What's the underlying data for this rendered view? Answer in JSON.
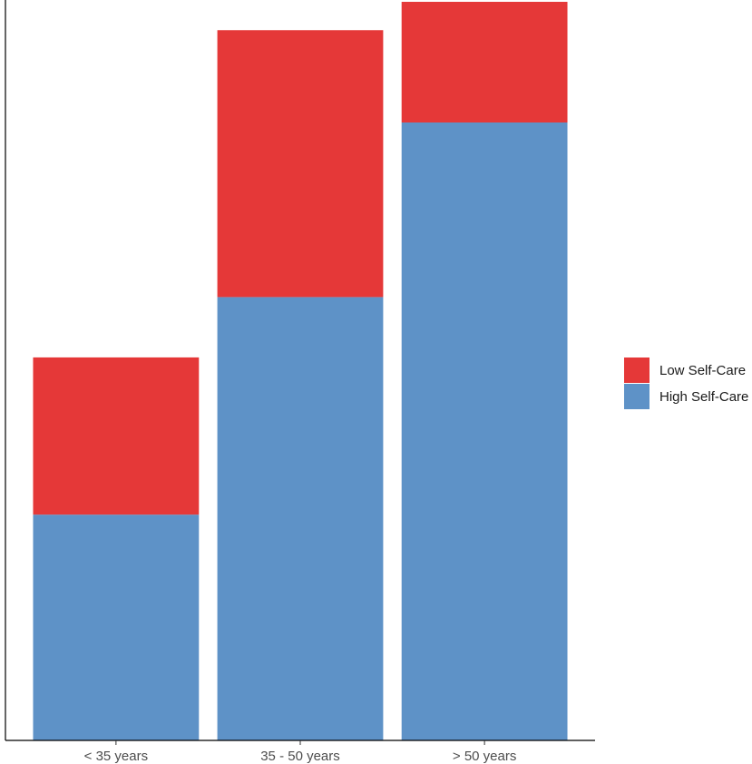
{
  "chart_data": {
    "type": "bar",
    "stacked": true,
    "categories": [
      "< 35 years",
      "35 - 50 years",
      "> 50 years"
    ],
    "series": [
      {
        "name": "High Self-Care",
        "color": "#5E92C7",
        "values": [
          247,
          485,
          676
        ]
      },
      {
        "name": "Low Self-Care",
        "color": "#E53838",
        "values": [
          172,
          292,
          132
        ]
      }
    ],
    "legend": {
      "position": "right",
      "entries": [
        "Low Self-Care",
        "High Self-Care"
      ]
    },
    "ylim": [
      0,
      810
    ],
    "grid": false,
    "xlabel": "",
    "ylabel": "",
    "title": ""
  }
}
